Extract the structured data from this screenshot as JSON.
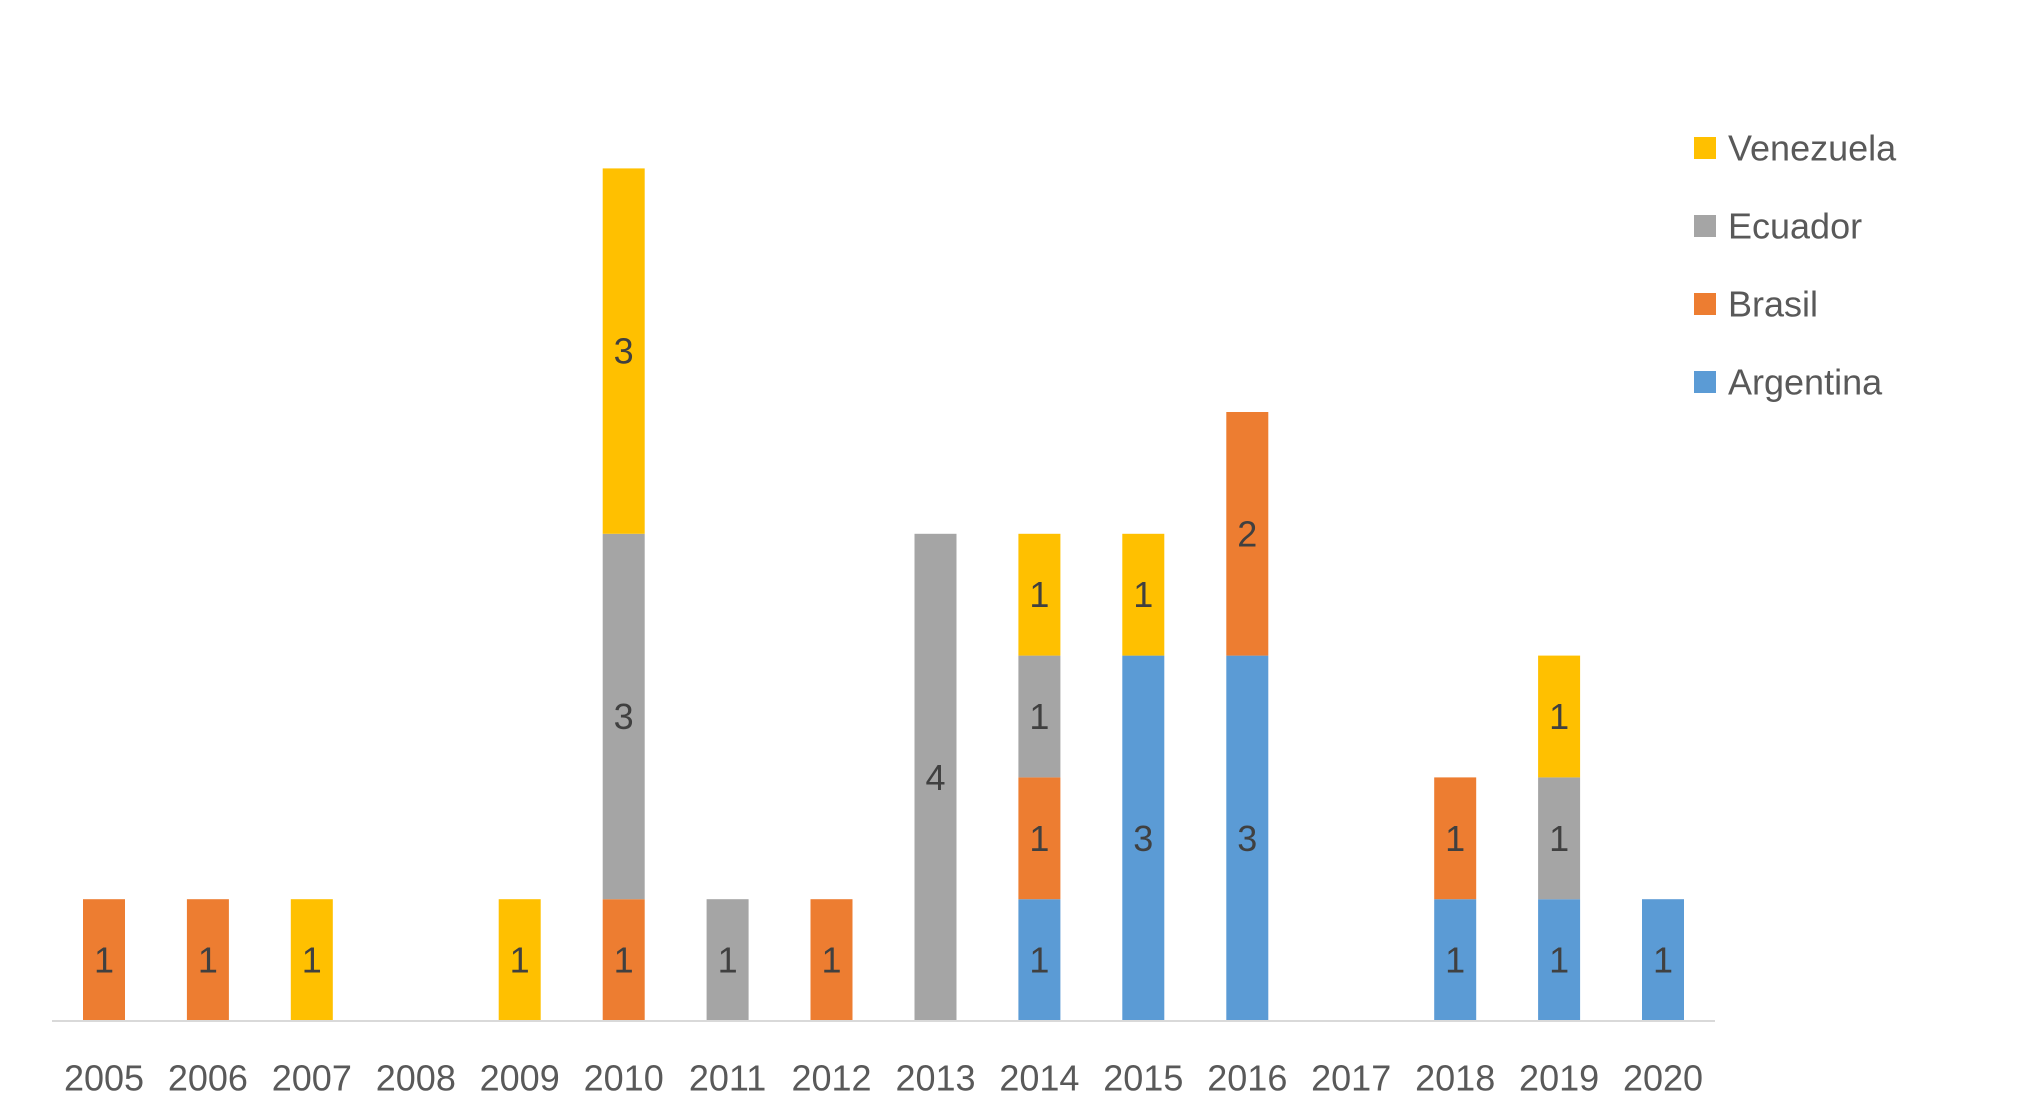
{
  "chart_data": {
    "type": "bar",
    "stacked": true,
    "title": "",
    "xlabel": "",
    "ylabel": "",
    "categories": [
      "2005",
      "2006",
      "2007",
      "2008",
      "2009",
      "2010",
      "2011",
      "2012",
      "2013",
      "2014",
      "2015",
      "2016",
      "2017",
      "2018",
      "2019",
      "2020"
    ],
    "series": [
      {
        "name": "Argentina",
        "color": "#5B9BD5",
        "values": [
          0,
          0,
          0,
          0,
          0,
          0,
          0,
          0,
          0,
          1,
          3,
          3,
          0,
          1,
          1,
          1
        ]
      },
      {
        "name": "Brasil",
        "color": "#ED7D31",
        "values": [
          1,
          1,
          0,
          0,
          0,
          1,
          0,
          1,
          0,
          1,
          0,
          2,
          0,
          1,
          0,
          0
        ]
      },
      {
        "name": "Ecuador",
        "color": "#A5A5A5",
        "values": [
          0,
          0,
          0,
          0,
          0,
          3,
          1,
          0,
          4,
          1,
          0,
          0,
          0,
          0,
          1,
          0
        ]
      },
      {
        "name": "Venezuela",
        "color": "#FFC000",
        "values": [
          0,
          0,
          1,
          0,
          1,
          3,
          0,
          0,
          0,
          1,
          1,
          0,
          0,
          0,
          1,
          0
        ]
      }
    ],
    "ylim": [
      0,
      7
    ],
    "grid": false,
    "y_axis_visible": false,
    "data_labels": true,
    "legend": {
      "position": "right",
      "order": [
        "Venezuela",
        "Ecuador",
        "Brasil",
        "Argentina"
      ]
    }
  }
}
